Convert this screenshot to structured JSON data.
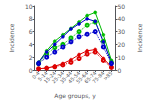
{
  "chart_data": {
    "type": "line",
    "xlabel": "Age groups, y",
    "ylabel": "Incidence",
    "y2label": "Incidence",
    "categories": [
      "0-4",
      "5-14",
      "15-24",
      "25-34",
      "35-44",
      "45-54",
      "55-64",
      "65-74",
      "75-84",
      ">85"
    ],
    "series": [
      {
        "color": "#dd0000",
        "line_style": "dotted",
        "marker": "open_circle",
        "values": [
          0.2,
          0.3,
          0.5,
          0.8,
          1.2,
          1.8,
          2.5,
          2.8,
          1.5,
          0.4
        ]
      },
      {
        "color": "#dd0000",
        "line_style": "solid",
        "marker": "circle",
        "values": [
          0.2,
          0.3,
          0.6,
          1.0,
          1.6,
          2.4,
          3.0,
          3.2,
          1.8,
          0.5
        ]
      },
      {
        "color": "#00bb00",
        "line_style": "dotted",
        "marker": "open_circle",
        "values": [
          1.0,
          2.5,
          3.5,
          4.0,
          5.0,
          6.0,
          7.0,
          7.5,
          4.5,
          1.2
        ]
      },
      {
        "color": "#00bb00",
        "line_style": "solid",
        "marker": "circle",
        "values": [
          1.2,
          3.0,
          4.5,
          5.5,
          6.5,
          7.5,
          8.5,
          9.0,
          5.5,
          1.5
        ]
      },
      {
        "color": "#0000cc",
        "line_style": "dotted",
        "marker": "open_circle",
        "axis": "y2",
        "values": [
          5.0,
          10.0,
          14.0,
          18.0,
          22.0,
          26.0,
          28.0,
          30.0,
          18.0,
          5.0
        ]
      },
      {
        "color": "#0000cc",
        "line_style": "solid",
        "marker": "circle",
        "axis": "y2",
        "values": [
          6.0,
          14.0,
          20.0,
          26.0,
          32.0,
          36.0,
          40.0,
          38.0,
          22.0,
          6.0
        ]
      }
    ],
    "ylim": [
      0,
      10
    ],
    "yticks": [
      0,
      2,
      4,
      6,
      8,
      10
    ],
    "y2lim": [
      0,
      50
    ],
    "y2ticks": [
      0,
      10,
      20,
      30,
      40,
      50
    ],
    "grid": false
  }
}
